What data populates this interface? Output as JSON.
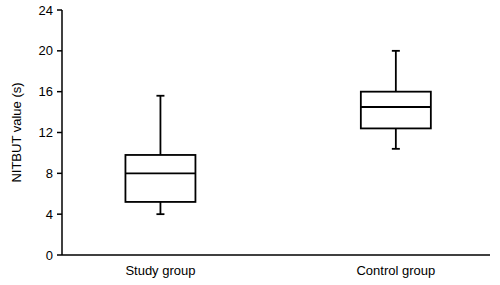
{
  "chart_data": {
    "type": "box",
    "y_label": "NITBUT value (s)",
    "categories": [
      "Study group",
      "Control group"
    ],
    "min": [
      4.0,
      10.4
    ],
    "q1": [
      5.2,
      12.4
    ],
    "median": [
      8.0,
      14.5
    ],
    "q3": [
      9.8,
      16.0
    ],
    "max": [
      15.6,
      20.0
    ],
    "color": "#000000",
    "ylim": [
      0,
      24
    ],
    "yticks": [
      0,
      4,
      8,
      12,
      16,
      20,
      24
    ],
    "grid": false
  }
}
